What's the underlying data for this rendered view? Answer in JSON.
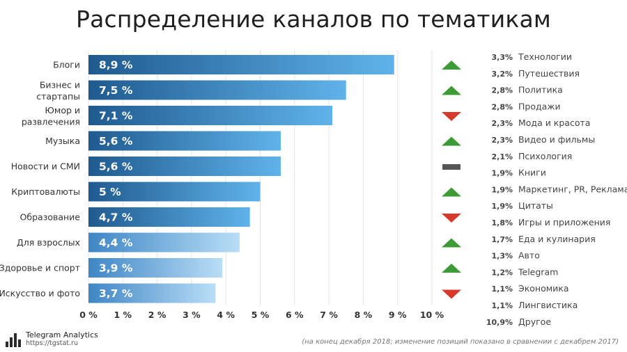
{
  "title": "Распределение каналов по тематикам",
  "chart_data": {
    "type": "bar",
    "orientation": "horizontal",
    "title": "Распределение каналов по тематикам",
    "categories": [
      "Блоги",
      "Бизнес и стартапы",
      "Юмор и развлечения",
      "Музыка",
      "Новости и СМИ",
      "Криптовалюты",
      "Образование",
      "Для взрослых",
      "Здоровье и спорт",
      "Искусство и фото"
    ],
    "category_lines": [
      [
        "Блоги"
      ],
      [
        "Бизнес и",
        "стартапы"
      ],
      [
        "Юмор и",
        "развлечения"
      ],
      [
        "Музыка"
      ],
      [
        "Новости и СМИ"
      ],
      [
        "Криптовалюты"
      ],
      [
        "Образование"
      ],
      [
        "Для взрослых"
      ],
      [
        "Здоровье и спорт"
      ],
      [
        "Искусство и фото"
      ]
    ],
    "values": [
      8.9,
      7.5,
      7.1,
      5.6,
      5.6,
      5.0,
      4.7,
      4.4,
      3.9,
      3.7
    ],
    "value_labels": [
      "8,9 %",
      "7,5 %",
      "7,1 %",
      "5,6 %",
      "5,6 %",
      "5 %",
      "4,7 %",
      "4,4 %",
      "3,9 %",
      "3,7 %"
    ],
    "xlim": [
      0,
      10
    ],
    "x_ticks": [
      0,
      1,
      2,
      3,
      4,
      5,
      6,
      7,
      8,
      9,
      10
    ],
    "x_tick_labels": [
      "0 %",
      "1 %",
      "2 %",
      "3 %",
      "4 %",
      "5 %",
      "6 %",
      "7 %",
      "8 %",
      "9 %",
      "10 %"
    ],
    "grid": true,
    "change_markers": [
      "up",
      "up",
      "down",
      "up",
      "neutral",
      "up",
      "down",
      "up",
      "up",
      "down"
    ],
    "colors": {
      "up": "#3d9b35",
      "down": "#d63a2c",
      "neutral": "#555555",
      "bar_dark": "#1f5a8f",
      "bar_light": "#5fb3ea"
    }
  },
  "other_topics": [
    {
      "pct": "3,3%",
      "name": "Технологии"
    },
    {
      "pct": "3,2%",
      "name": "Путешествия"
    },
    {
      "pct": "2,8%",
      "name": "Политика"
    },
    {
      "pct": "2,8%",
      "name": "Продажи"
    },
    {
      "pct": "2,3%",
      "name": "Мода и красота"
    },
    {
      "pct": "2,3%",
      "name": "Видео и фильмы"
    },
    {
      "pct": "2,1%",
      "name": "Психология"
    },
    {
      "pct": "1,9%",
      "name": "Книги"
    },
    {
      "pct": "1,9%",
      "name": "Маркетинг, PR, Реклама"
    },
    {
      "pct": "1,9%",
      "name": "Цитаты"
    },
    {
      "pct": "1,8%",
      "name": "Игры и приложения"
    },
    {
      "pct": "1,7%",
      "name": "Еда и кулинария"
    },
    {
      "pct": "1,3%",
      "name": "Авто"
    },
    {
      "pct": "1,2%",
      "name": "Telegram"
    },
    {
      "pct": "1,1%",
      "name": "Экономика"
    },
    {
      "pct": "1,1%",
      "name": "Лингвистика"
    },
    {
      "pct": "10,9%",
      "name": "Другое"
    }
  ],
  "footnote": "(на конец декабря 2018; изменение позиций показано в сравнении с декабрем 2017)",
  "brand": {
    "name": "Telegram Analytics",
    "url": "https://tgstat.ru"
  }
}
